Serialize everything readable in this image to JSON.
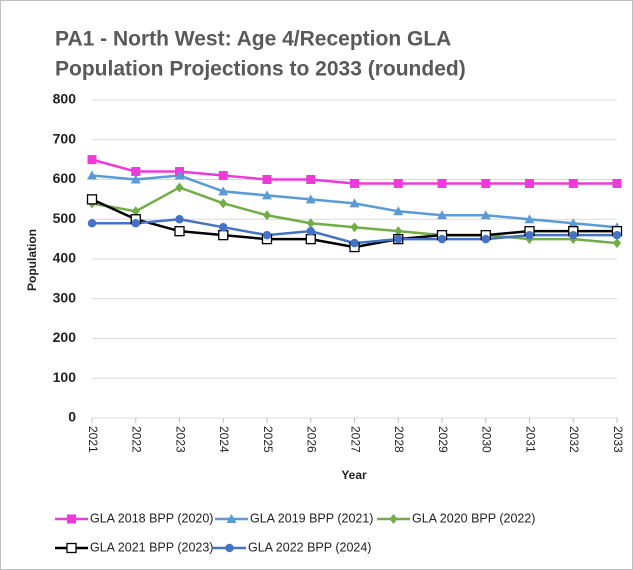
{
  "chart_data": {
    "type": "line",
    "title": [
      "PA1 - North West: Age 4/Reception GLA",
      "Population Projections to 2033 (rounded)"
    ],
    "x_label": "Year",
    "y_label": "Population",
    "categories": [
      "2021",
      "2022",
      "2023",
      "2024",
      "2025",
      "2026",
      "2027",
      "2028",
      "2029",
      "2030",
      "2031",
      "2032",
      "2033"
    ],
    "ylim": [
      0,
      800
    ],
    "yticks": [
      0,
      100,
      200,
      300,
      400,
      500,
      600,
      700,
      800
    ],
    "grid": true,
    "legend": "bottom",
    "series": [
      {
        "name": "GLA 2018 BPP (2020)",
        "color": "#ee3bd8",
        "marker": "square",
        "values": [
          650,
          620,
          620,
          610,
          600,
          600,
          590,
          590,
          590,
          590,
          590,
          590,
          590
        ]
      },
      {
        "name": "GLA 2019 BPP (2021)",
        "color": "#5b9bd5",
        "marker": "triangle",
        "values": [
          610,
          600,
          610,
          570,
          560,
          550,
          540,
          520,
          510,
          510,
          500,
          490,
          480
        ]
      },
      {
        "name": "GLA 2020 BPP (2022)",
        "color": "#70ad47",
        "marker": "diamond",
        "values": [
          540,
          520,
          580,
          540,
          510,
          490,
          480,
          470,
          460,
          460,
          450,
          450,
          440
        ]
      },
      {
        "name": "GLA 2021 BPP (2023)",
        "color": "#000000",
        "marker": "open-square",
        "values": [
          550,
          500,
          470,
          460,
          450,
          450,
          430,
          450,
          460,
          460,
          470,
          470,
          470
        ]
      },
      {
        "name": "GLA 2022 BPP (2024)",
        "color": "#4472c4",
        "marker": "circle",
        "values": [
          490,
          490,
          500,
          480,
          460,
          470,
          440,
          450,
          450,
          450,
          460,
          460,
          460
        ]
      }
    ]
  }
}
